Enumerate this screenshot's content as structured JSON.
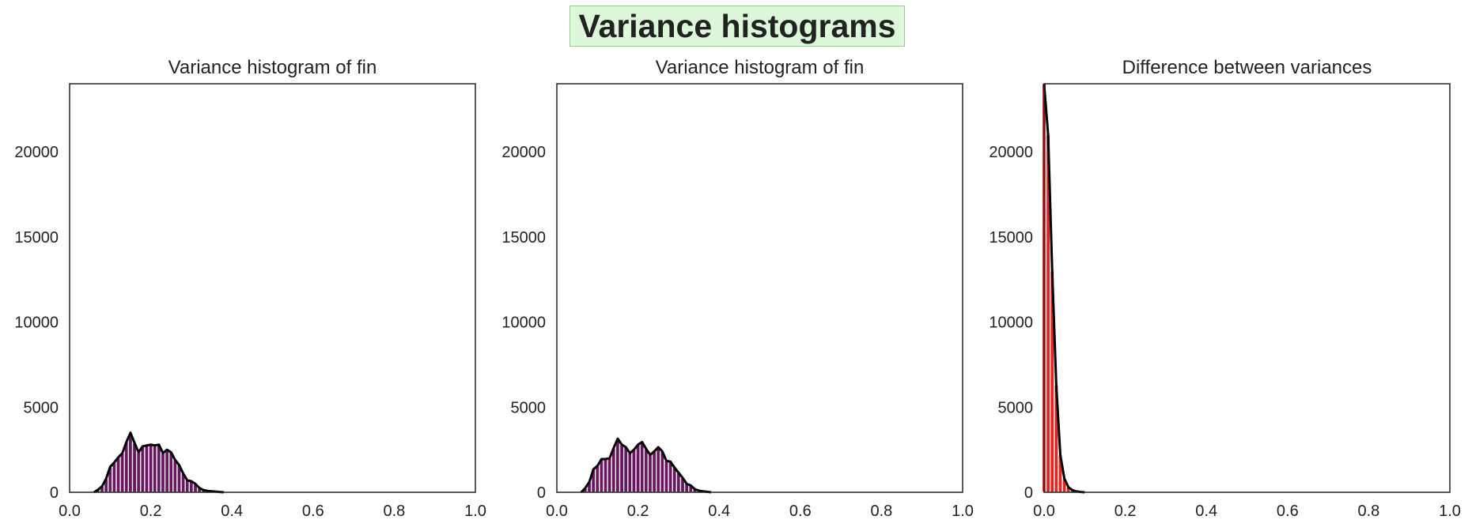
{
  "figure": {
    "title": "Variance histograms",
    "title_bg": "#dcf7d9",
    "title_border": "#8fcf8a"
  },
  "chart_data": [
    {
      "type": "histogram",
      "title": "Variance histogram of fin",
      "color": "#6a1660",
      "kde_color": "#000000",
      "xlim": [
        0.0,
        1.0
      ],
      "ylim": [
        0,
        24000
      ],
      "xticks": [
        "0.0",
        "0.2",
        "0.4",
        "0.6",
        "0.8",
        "1.0"
      ],
      "yticks": [
        "0",
        "5000",
        "10000",
        "15000",
        "20000"
      ],
      "x": [
        0.06,
        0.07,
        0.08,
        0.09,
        0.1,
        0.11,
        0.12,
        0.13,
        0.14,
        0.15,
        0.16,
        0.17,
        0.18,
        0.19,
        0.2,
        0.21,
        0.22,
        0.23,
        0.24,
        0.25,
        0.26,
        0.27,
        0.28,
        0.29,
        0.3,
        0.31,
        0.32,
        0.33,
        0.34,
        0.35,
        0.36,
        0.37,
        0.38
      ],
      "values": [
        0,
        150,
        350,
        800,
        1500,
        1750,
        2050,
        2300,
        2950,
        3500,
        2900,
        2350,
        2700,
        2750,
        2800,
        2750,
        2800,
        2300,
        2500,
        2350,
        1900,
        1600,
        1100,
        700,
        650,
        500,
        250,
        130,
        80,
        60,
        40,
        20,
        0
      ]
    },
    {
      "type": "histogram",
      "title": "Variance histogram of fin",
      "color": "#6a1660",
      "kde_color": "#000000",
      "xlim": [
        0.0,
        1.0
      ],
      "ylim": [
        0,
        24000
      ],
      "xticks": [
        "0.0",
        "0.2",
        "0.4",
        "0.6",
        "0.8",
        "1.0"
      ],
      "yticks": [
        "0",
        "5000",
        "10000",
        "15000",
        "20000"
      ],
      "x": [
        0.06,
        0.07,
        0.08,
        0.09,
        0.1,
        0.11,
        0.12,
        0.13,
        0.14,
        0.15,
        0.16,
        0.17,
        0.18,
        0.19,
        0.2,
        0.21,
        0.22,
        0.23,
        0.24,
        0.25,
        0.26,
        0.27,
        0.28,
        0.29,
        0.3,
        0.31,
        0.32,
        0.33,
        0.34,
        0.35,
        0.36,
        0.37,
        0.38
      ],
      "values": [
        0,
        250,
        600,
        1350,
        1550,
        1950,
        1950,
        2000,
        2600,
        3150,
        2800,
        2650,
        2300,
        2500,
        2800,
        2950,
        2550,
        2200,
        2400,
        2650,
        2400,
        1850,
        1800,
        1450,
        1150,
        850,
        500,
        400,
        180,
        100,
        60,
        30,
        0
      ]
    },
    {
      "type": "histogram",
      "title": "Difference between variances",
      "color": "#e8231f",
      "kde_color": "#000000",
      "xlim": [
        0.0,
        1.0
      ],
      "ylim": [
        0,
        24000
      ],
      "xticks": [
        "0.0",
        "0.2",
        "0.4",
        "0.6",
        "0.8",
        "1.0"
      ],
      "yticks": [
        "0",
        "5000",
        "10000",
        "15000",
        "20000"
      ],
      "x": [
        0.0,
        0.01,
        0.02,
        0.03,
        0.04,
        0.05,
        0.06,
        0.07,
        0.08,
        0.09,
        0.1
      ],
      "values": [
        24000,
        21000,
        13000,
        6300,
        2200,
        800,
        300,
        120,
        50,
        20,
        0
      ]
    }
  ]
}
